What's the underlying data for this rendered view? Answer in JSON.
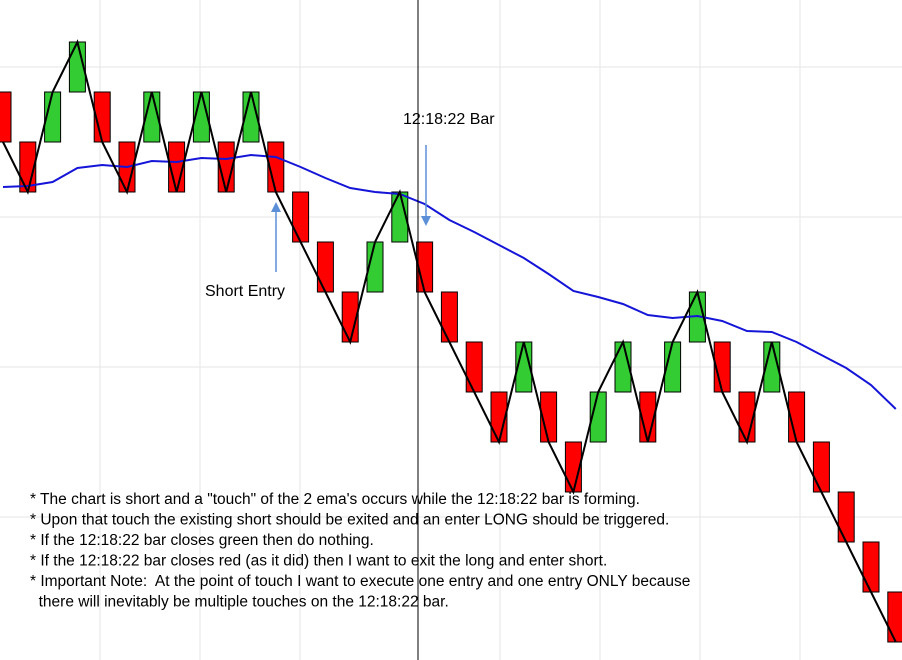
{
  "chart_data": {
    "type": "renko",
    "ylim": [
      0,
      12
    ],
    "up_color": "#33cc33",
    "down_color": "#ff0000",
    "open": [
      11,
      10,
      10,
      11,
      11,
      10,
      10,
      10,
      10,
      10,
      10,
      10,
      9,
      8,
      7,
      7,
      8,
      8,
      7,
      6,
      5,
      5,
      5,
      4,
      4,
      5,
      5,
      5,
      6,
      6,
      5,
      5,
      5,
      4,
      3,
      2,
      1
    ],
    "close": [
      10,
      9,
      11,
      12,
      10,
      9,
      11,
      9,
      11,
      9,
      11,
      9,
      8,
      7,
      6,
      8,
      9,
      7,
      6,
      5,
      4,
      6,
      4,
      3,
      5,
      6,
      4,
      6,
      7,
      5,
      4,
      6,
      4,
      3,
      2,
      1,
      0
    ],
    "ema": [
      9.1,
      9.12,
      9.2,
      9.48,
      9.54,
      9.5,
      9.62,
      9.6,
      9.68,
      9.66,
      9.74,
      9.7,
      9.5,
      9.28,
      9.08,
      9.0,
      8.96,
      8.76,
      8.44,
      8.2,
      7.94,
      7.68,
      7.36,
      7.02,
      6.9,
      6.76,
      6.54,
      6.48,
      6.52,
      6.42,
      6.22,
      6.2,
      6.0,
      5.74,
      5.48,
      5.14,
      4.66
    ],
    "ema_color": "#1515d8",
    "annotations": [
      "12:18:22 Bar",
      "Short Entry"
    ],
    "notes": [
      "* The chart is short and a \"touch\" of the 2 ema's occurs while the 12:18:22 bar is forming.",
      "* Upon that touch the existing short should be exited and an enter LONG should be triggered.",
      "* If the 12:18:22 bar closes green then do nothing.",
      "* If the 12:18:22 bar closes red (as it did) then I want to exit the long and enter short.",
      "* Important Note:  At the point of touch I want to execute one entry and one entry ONLY because",
      "  there will inevitably be multiple touches on the 12:18:22 bar."
    ]
  }
}
